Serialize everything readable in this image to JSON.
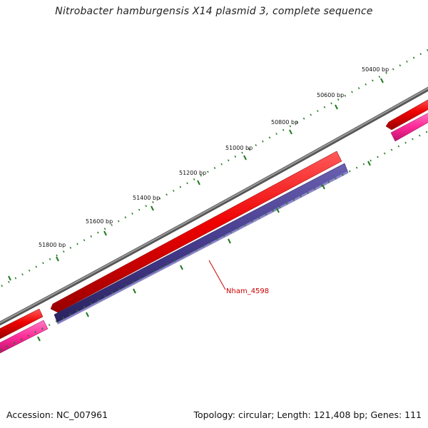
{
  "title": "Nitrobacter hamburgensis X14 plasmid 3, complete sequence",
  "scale_labels": [
    "50400 bp",
    "50600 bp",
    "50800 bp",
    "51000 bp",
    "51200 bp",
    "51400 bp",
    "51600 bp",
    "51800 bp"
  ],
  "gene_label": "Nham_4598",
  "footer": {
    "accession": "Accession: NC_007961",
    "summary": "Topology: circular; Length: 121,408 bp; Genes: 111"
  },
  "colors": {
    "backbone": "#7a7a7a",
    "forward_gene": "#e60000",
    "reverse_gene": "#453a8c",
    "rna_gene": "#ff2b9a",
    "ticks": "#1f7a1f",
    "gene_label": "#cc0000"
  }
}
